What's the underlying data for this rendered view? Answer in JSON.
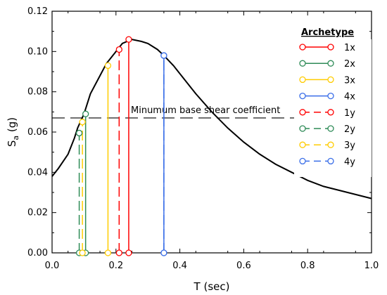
{
  "chart_data": {
    "type": "line",
    "xlabel": "T (sec)",
    "ylabel_main": "S",
    "ylabel_sub": "a",
    "ylabel_suffix": " (g)",
    "xlim": [
      0,
      1.0
    ],
    "ylim": [
      0,
      0.12
    ],
    "xticks": [
      0.0,
      0.2,
      0.4,
      0.6,
      0.8,
      1.0
    ],
    "xtick_labels": [
      "0.0",
      "0.2",
      "0.4",
      "0.6",
      "0.8",
      "1.0"
    ],
    "yticks": [
      0.0,
      0.02,
      0.04,
      0.06,
      0.08,
      0.1,
      0.12
    ],
    "ytick_labels": [
      "0.00",
      "0.02",
      "0.04",
      "0.06",
      "0.08",
      "0.10",
      "0.12"
    ],
    "grid": false,
    "spectrum": {
      "color": "#000000",
      "x": [
        0.0,
        0.02,
        0.05,
        0.07,
        0.08,
        0.1,
        0.12,
        0.15,
        0.17,
        0.2,
        0.22,
        0.25,
        0.28,
        0.3,
        0.33,
        0.35,
        0.38,
        0.4,
        0.45,
        0.5,
        0.55,
        0.6,
        0.65,
        0.7,
        0.75,
        0.8,
        0.85,
        0.9,
        0.95,
        1.0
      ],
      "y": [
        0.038,
        0.042,
        0.049,
        0.057,
        0.062,
        0.069,
        0.079,
        0.088,
        0.094,
        0.1,
        0.104,
        0.106,
        0.105,
        0.104,
        0.101,
        0.098,
        0.093,
        0.089,
        0.079,
        0.07,
        0.062,
        0.055,
        0.049,
        0.044,
        0.04,
        0.036,
        0.033,
        0.031,
        0.029,
        0.027
      ]
    },
    "reference_line": {
      "label": "Minumum base shear coefficient",
      "y": 0.067,
      "style": "dashed",
      "color": "#000000"
    },
    "legend": {
      "title": "Archetype",
      "placement": "right"
    },
    "series": [
      {
        "name": "1x",
        "color": "#ff0000",
        "style": "solid",
        "x": 0.24,
        "y": 0.106
      },
      {
        "name": "2x",
        "color": "#2e8b57",
        "style": "solid",
        "x": 0.105,
        "y": 0.069
      },
      {
        "name": "3x",
        "color": "#ffcc00",
        "style": "solid",
        "x": 0.175,
        "y": 0.093
      },
      {
        "name": "4x",
        "color": "#3a6ee8",
        "style": "solid",
        "x": 0.35,
        "y": 0.098
      },
      {
        "name": "1y",
        "color": "#ff0000",
        "style": "dashed",
        "x": 0.21,
        "y": 0.101
      },
      {
        "name": "2y",
        "color": "#2e8b57",
        "style": "dashed",
        "x": 0.085,
        "y": 0.0595
      },
      {
        "name": "3y",
        "color": "#ffcc00",
        "style": "dashed",
        "x": 0.095,
        "y": 0.065
      },
      {
        "name": "4y",
        "color": "#3a6ee8",
        "style": "dashed",
        "x": 0.35,
        "y": 0.098
      }
    ]
  }
}
